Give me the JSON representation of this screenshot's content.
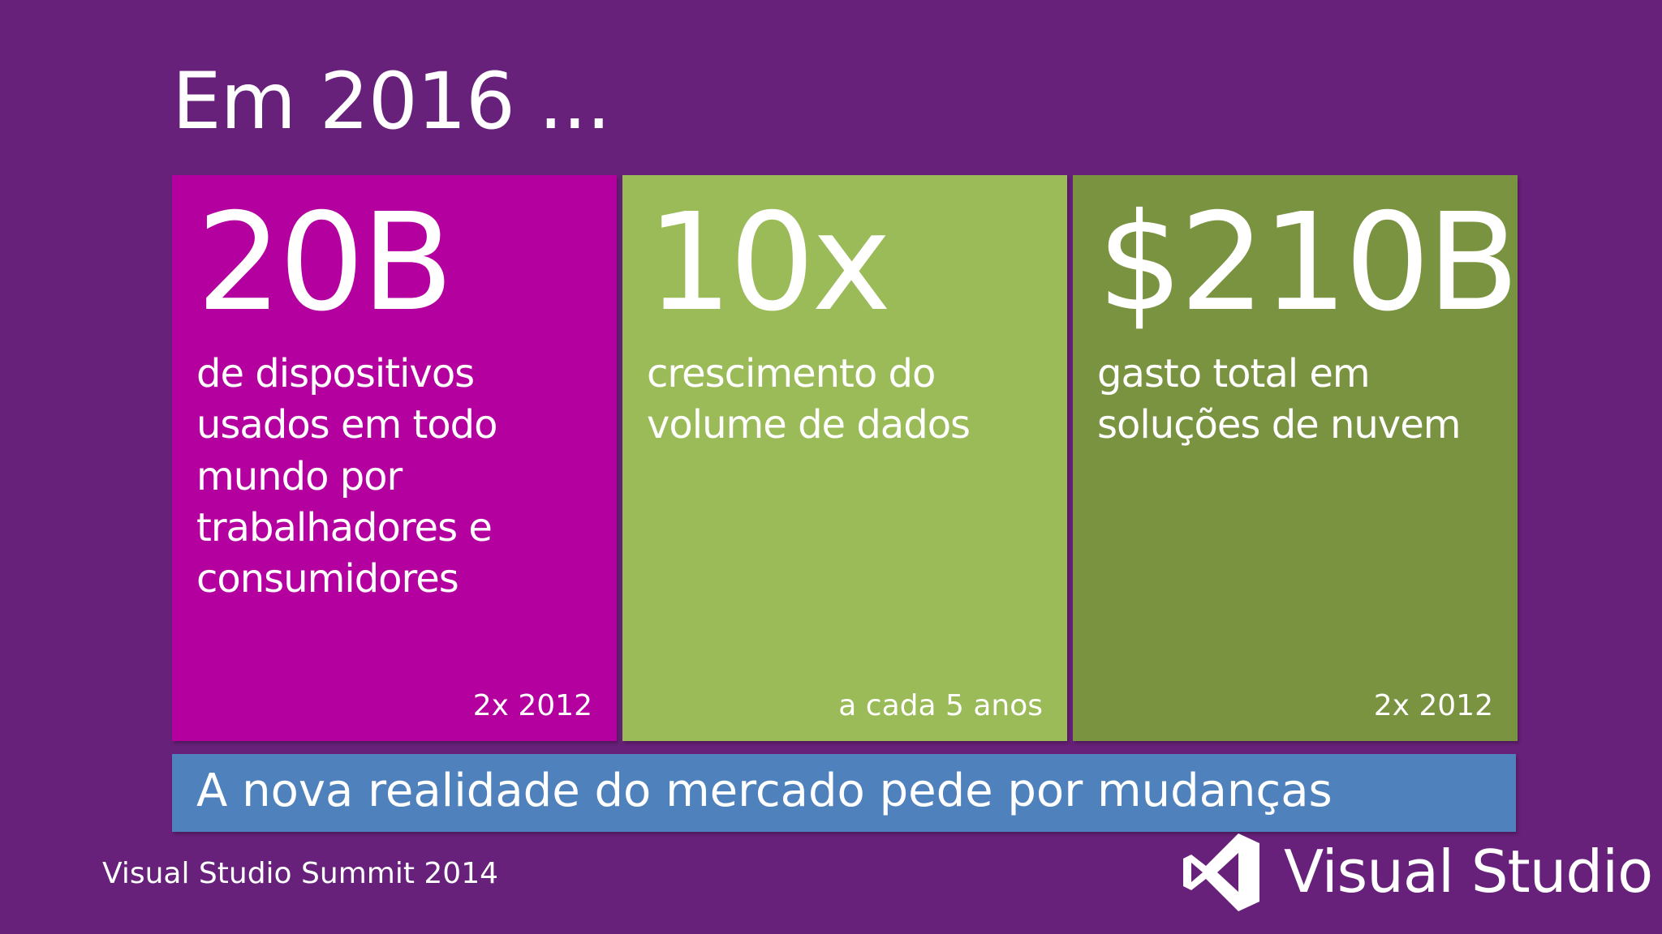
{
  "slide": {
    "title": "Em 2016 ...",
    "tiles": [
      {
        "stat": "20B",
        "description": "de dispositivos usados em todo mundo por trabalhadores e consumidores",
        "footnote": "2x 2012",
        "color": "#b4009e"
      },
      {
        "stat": "10x",
        "description": "crescimento do volume de dados",
        "footnote": "a cada 5 anos",
        "color": "#9bbb59"
      },
      {
        "stat": "$210B",
        "description": "gasto total em soluções de nuvem",
        "footnote": "2x 2012",
        "color": "#7a9340"
      }
    ],
    "banner": {
      "text": "A nova realidade do mercado pede por mudanças",
      "color": "#4f81bd"
    },
    "event_label": "Visual Studio Summit 2014",
    "logo": {
      "text": "Visual Studio",
      "icon": "visual-studio-logo-icon"
    },
    "background_color": "#68217a"
  }
}
